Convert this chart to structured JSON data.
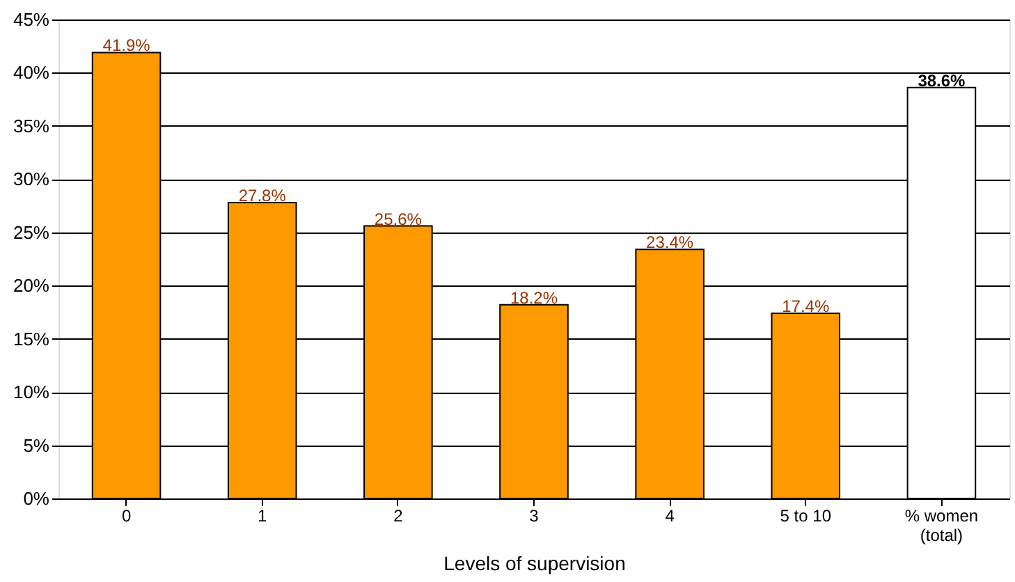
{
  "chart_data": {
    "type": "bar",
    "xlabel": "Levels of supervision",
    "categories": [
      "0",
      "1",
      "2",
      "3",
      "4",
      "5 to 10",
      "% women\n(total)"
    ],
    "series": [
      {
        "color": "#ff9900",
        "values": [
          41.9,
          27.8,
          25.6,
          18.2,
          23.4,
          17.4,
          null
        ],
        "value_labels": [
          "41.9%",
          "27.8%",
          "25.6%",
          "18.2%",
          "23.4%",
          "17.4%",
          null
        ]
      },
      {
        "color": "#ffffff",
        "values": [
          null,
          null,
          null,
          null,
          null,
          null,
          38.6
        ],
        "value_labels": [
          null,
          null,
          null,
          null,
          null,
          null,
          "38.6%"
        ]
      }
    ],
    "ylim": [
      0,
      45
    ],
    "yticks": [
      {
        "value": 0,
        "label": "0%"
      },
      {
        "value": 5,
        "label": "5%"
      },
      {
        "value": 10,
        "label": "10%"
      },
      {
        "value": 15,
        "label": "15%"
      },
      {
        "value": 20,
        "label": "20%"
      },
      {
        "value": 25,
        "label": "25%"
      },
      {
        "value": 30,
        "label": "30%"
      },
      {
        "value": 35,
        "label": "35%"
      },
      {
        "value": 40,
        "label": "40%"
      },
      {
        "value": 45,
        "label": "45%"
      }
    ],
    "grid": "y"
  }
}
